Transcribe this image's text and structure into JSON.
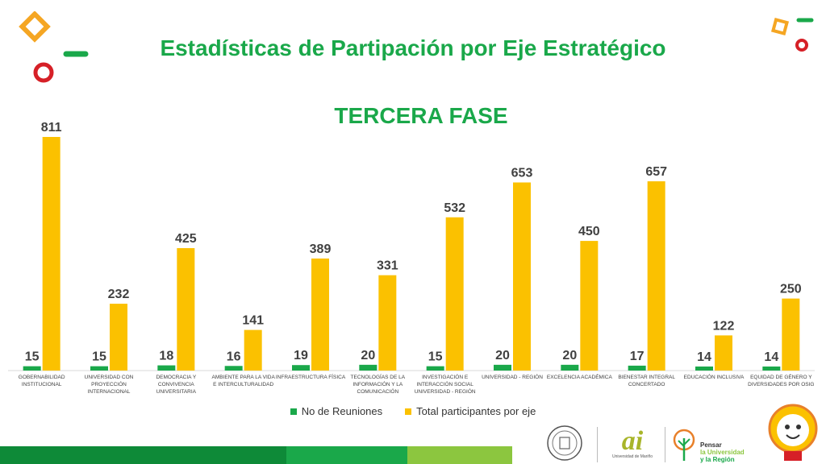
{
  "title": "Estadísticas de Partipación por Eje Estratégico",
  "subtitle": "TERCERA FASE",
  "colors": {
    "reuniones": "#1aa84a",
    "participantes": "#fbc100",
    "title": "#1aa84a",
    "footer": [
      "#0e8a38",
      "#1aa84a",
      "#8cc63f"
    ]
  },
  "icons": [
    "orange-square-icon",
    "green-dash-icon",
    "red-ring-icon",
    "lightbulb-mascot-icon"
  ],
  "logos": {
    "ai": "ai",
    "ai_caption": "Universidad de Mariño",
    "pensar_1": "Pensar",
    "pensar_2": "la Universidad",
    "pensar_3": "y la Región"
  },
  "chart_data": {
    "type": "bar",
    "categories": [
      "GOBERNABILIDAD INSTITUCIONAL",
      "UNIVERSIDAD CON PROYECCIÓN INTERNACIONAL",
      "DEMOCRACIA Y CONVIVENCIA UNIVERSITARIA",
      "AMBIENTE PARA LA VIDA E INTERCULTURALIDAD",
      "INFRAESTRUCTURA FÍSICA",
      "TECNOLOGÍAS DE LA INFORMACIÓN Y LA COMUNICACIÓN",
      "INVESTIGACIÓN E INTERACCIÓN SOCIAL UNIVERSIDAD - REGIÓN",
      "UNIVERSIDAD - REGIÓN",
      "EXCELENCIA ACADÉMICA",
      "BIENESTAR INTEGRAL CONCERTADO",
      "EDUCACIÓN INCLUSIVA",
      "EQUIDAD DE GÉNERO Y DIVERSIDADES POR OSIG"
    ],
    "series": [
      {
        "name": "No de Reuniones",
        "values": [
          15,
          15,
          18,
          16,
          19,
          20,
          15,
          20,
          20,
          17,
          14,
          14
        ]
      },
      {
        "name": "Total participantes por eje",
        "values": [
          811,
          232,
          425,
          141,
          389,
          331,
          532,
          653,
          450,
          657,
          122,
          250
        ]
      }
    ],
    "ylim": [
      0,
      811
    ],
    "grid": false,
    "legend": "bottom"
  }
}
